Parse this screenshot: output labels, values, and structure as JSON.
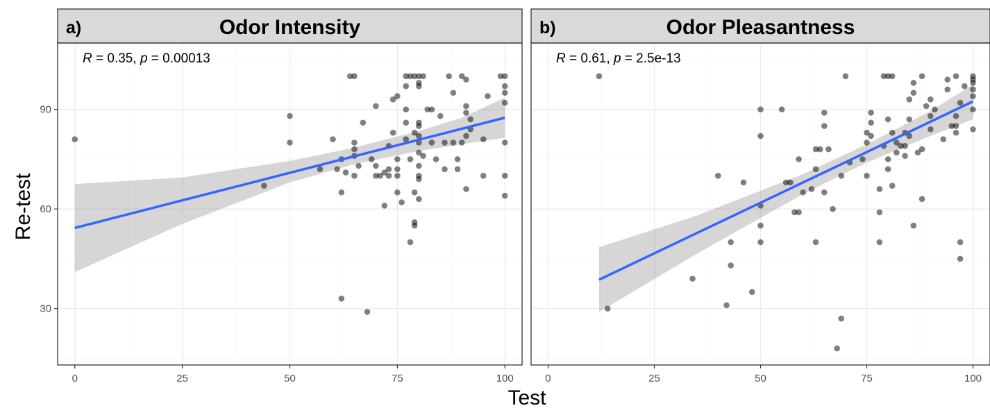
{
  "chart_data": [
    {
      "type": "scatter",
      "panel_letter": "a)",
      "title": "Odor Intensity",
      "stat": {
        "r_label": "R",
        "r_value": " = 0.35, ",
        "p_label": "p",
        "p_value": " = 0.00013"
      },
      "xlabel": "Test",
      "ylabel": "Re-test",
      "xlim": [
        -4,
        104
      ],
      "ylim": [
        13,
        110
      ],
      "x_ticks": [
        0,
        25,
        50,
        75,
        100
      ],
      "x_tick_labels": [
        "0",
        "25",
        "50",
        "75",
        "100"
      ],
      "y_ticks": [
        30,
        60,
        90
      ],
      "y_tick_labels": [
        "30",
        "60",
        "90"
      ],
      "grid": true,
      "line_color": "#3366ff",
      "point_color": "#000000",
      "fit": {
        "x0": 0,
        "y0": 54.3,
        "x1": 100,
        "y1": 87.5
      },
      "ci": [
        {
          "x": 0,
          "lower": 41,
          "upper": 67.5
        },
        {
          "x": 25,
          "lower": 55.5,
          "upper": 69.5
        },
        {
          "x": 50,
          "lower": 68,
          "upper": 74.5
        },
        {
          "x": 65,
          "lower": 73.5,
          "upper": 78.5
        },
        {
          "x": 80,
          "lower": 77.5,
          "upper": 83.5
        },
        {
          "x": 90,
          "lower": 79.5,
          "upper": 87.5
        },
        {
          "x": 100,
          "lower": 81.5,
          "upper": 93.5
        }
      ],
      "points": [
        [
          0,
          81
        ],
        [
          44,
          67
        ],
        [
          50,
          88
        ],
        [
          50,
          80
        ],
        [
          57,
          72
        ],
        [
          60,
          81
        ],
        [
          61,
          72
        ],
        [
          62,
          65
        ],
        [
          62,
          33
        ],
        [
          62,
          75
        ],
        [
          63,
          71
        ],
        [
          64,
          100
        ],
        [
          65,
          100
        ],
        [
          65,
          80
        ],
        [
          65,
          78
        ],
        [
          65,
          76
        ],
        [
          66,
          73
        ],
        [
          65,
          70
        ],
        [
          67,
          86
        ],
        [
          68,
          29
        ],
        [
          69,
          75
        ],
        [
          70,
          91
        ],
        [
          70,
          73
        ],
        [
          70,
          70
        ],
        [
          71,
          70
        ],
        [
          72,
          61
        ],
        [
          72,
          71
        ],
        [
          73,
          72
        ],
        [
          73,
          79
        ],
        [
          73,
          70
        ],
        [
          74,
          93
        ],
        [
          74,
          83
        ],
        [
          75,
          94
        ],
        [
          75,
          75
        ],
        [
          75,
          72
        ],
        [
          75,
          70
        ],
        [
          76,
          62
        ],
        [
          75,
          65
        ],
        [
          77,
          100
        ],
        [
          77,
          97
        ],
        [
          77,
          90
        ],
        [
          77,
          86
        ],
        [
          78,
          100
        ],
        [
          77,
          81
        ],
        [
          78,
          50
        ],
        [
          78,
          75
        ],
        [
          79,
          100
        ],
        [
          79,
          83
        ],
        [
          79,
          56
        ],
        [
          79,
          55
        ],
        [
          79,
          65
        ],
        [
          80,
          100
        ],
        [
          80,
          98
        ],
        [
          80,
          97
        ],
        [
          80,
          86
        ],
        [
          80,
          85
        ],
        [
          80,
          82
        ],
        [
          80,
          80
        ],
        [
          80,
          77
        ],
        [
          80,
          73
        ],
        [
          80,
          70
        ],
        [
          80,
          69
        ],
        [
          80,
          63
        ],
        [
          81,
          100
        ],
        [
          81,
          76
        ],
        [
          82,
          90
        ],
        [
          83,
          90
        ],
        [
          83,
          80
        ],
        [
          84,
          75
        ],
        [
          85,
          88
        ],
        [
          86,
          80
        ],
        [
          86,
          72
        ],
        [
          87,
          100
        ],
        [
          88,
          95
        ],
        [
          88,
          80
        ],
        [
          89,
          75
        ],
        [
          89,
          72
        ],
        [
          90,
          100
        ],
        [
          90,
          80
        ],
        [
          91,
          99
        ],
        [
          91,
          91
        ],
        [
          91,
          89
        ],
        [
          91,
          82
        ],
        [
          91,
          66
        ],
        [
          92,
          87
        ],
        [
          92,
          84
        ],
        [
          95,
          81
        ],
        [
          95,
          70
        ],
        [
          96,
          94
        ],
        [
          99,
          100
        ],
        [
          100,
          100
        ],
        [
          100,
          97
        ],
        [
          100,
          95
        ],
        [
          100,
          92
        ],
        [
          100,
          80
        ],
        [
          100,
          70
        ],
        [
          100,
          64
        ]
      ]
    },
    {
      "type": "scatter",
      "panel_letter": "b)",
      "title": "Odor Pleasantness",
      "stat": {
        "r_label": "R",
        "r_value": " = 0.61, ",
        "p_label": "p",
        "p_value": " = 2.5e-13"
      },
      "xlabel": "Test",
      "ylabel": "Re-test",
      "xlim": [
        -4,
        104
      ],
      "ylim": [
        13,
        110
      ],
      "x_ticks": [
        0,
        25,
        50,
        75,
        100
      ],
      "x_tick_labels": [
        "0",
        "25",
        "50",
        "75",
        "100"
      ],
      "y_ticks": [
        30,
        60,
        90
      ],
      "y_tick_labels": [
        "30",
        "60",
        "90"
      ],
      "grid": true,
      "line_color": "#3366ff",
      "point_color": "#000000",
      "fit": {
        "x0": 12,
        "y0": 38.7,
        "x1": 100,
        "y1": 92.4
      },
      "ci": [
        {
          "x": 12,
          "lower": 29,
          "upper": 48.5
        },
        {
          "x": 35,
          "lower": 46.5,
          "upper": 58
        },
        {
          "x": 60,
          "lower": 64.5,
          "upper": 70.5
        },
        {
          "x": 75,
          "lower": 74,
          "upper": 79.5
        },
        {
          "x": 90,
          "lower": 82,
          "upper": 89.5
        },
        {
          "x": 100,
          "lower": 87,
          "upper": 97.5
        }
      ],
      "points": [
        [
          12,
          100
        ],
        [
          14,
          30
        ],
        [
          34,
          39
        ],
        [
          40,
          70
        ],
        [
          42,
          31
        ],
        [
          43,
          50
        ],
        [
          43,
          43
        ],
        [
          46,
          68
        ],
        [
          48,
          35
        ],
        [
          50,
          90
        ],
        [
          50,
          82
        ],
        [
          50,
          61
        ],
        [
          50,
          55
        ],
        [
          50,
          50
        ],
        [
          55,
          90
        ],
        [
          56,
          68
        ],
        [
          57,
          68
        ],
        [
          58,
          59
        ],
        [
          59,
          75
        ],
        [
          59,
          59
        ],
        [
          60,
          65
        ],
        [
          62,
          66
        ],
        [
          63,
          78
        ],
        [
          63,
          72
        ],
        [
          63,
          50
        ],
        [
          64,
          78
        ],
        [
          65,
          89
        ],
        [
          65,
          85
        ],
        [
          65,
          65
        ],
        [
          66,
          78
        ],
        [
          67,
          60
        ],
        [
          68,
          18
        ],
        [
          69,
          70
        ],
        [
          69,
          27
        ],
        [
          70,
          100
        ],
        [
          71,
          74
        ],
        [
          74,
          75
        ],
        [
          75,
          83
        ],
        [
          75,
          80
        ],
        [
          75,
          70
        ],
        [
          76,
          89
        ],
        [
          76,
          86
        ],
        [
          76,
          82
        ],
        [
          78,
          66
        ],
        [
          78,
          59
        ],
        [
          78,
          50
        ],
        [
          79,
          100
        ],
        [
          79,
          79
        ],
        [
          80,
          100
        ],
        [
          80,
          87
        ],
        [
          80,
          75
        ],
        [
          80,
          72
        ],
        [
          81,
          100
        ],
        [
          81,
          83
        ],
        [
          81,
          67
        ],
        [
          82,
          80
        ],
        [
          82,
          77
        ],
        [
          83,
          79
        ],
        [
          84,
          83
        ],
        [
          84,
          76
        ],
        [
          84,
          79
        ],
        [
          85,
          87
        ],
        [
          85,
          82
        ],
        [
          85,
          93
        ],
        [
          86,
          98
        ],
        [
          86,
          95
        ],
        [
          86,
          55
        ],
        [
          87,
          77
        ],
        [
          88,
          100
        ],
        [
          88,
          78
        ],
        [
          88,
          63
        ],
        [
          89,
          91
        ],
        [
          90,
          93
        ],
        [
          90,
          88
        ],
        [
          90,
          84
        ],
        [
          91,
          90
        ],
        [
          93,
          81
        ],
        [
          94,
          99
        ],
        [
          94,
          96
        ],
        [
          95,
          85
        ],
        [
          96,
          100
        ],
        [
          96,
          88
        ],
        [
          96,
          85
        ],
        [
          96,
          83
        ],
        [
          97,
          92
        ],
        [
          97,
          50
        ],
        [
          97,
          45
        ],
        [
          98,
          97
        ],
        [
          100,
          100
        ],
        [
          100,
          99
        ],
        [
          100,
          98
        ],
        [
          100,
          96
        ],
        [
          100,
          94
        ],
        [
          100,
          90
        ],
        [
          100,
          84
        ]
      ]
    }
  ],
  "axis_titles": {
    "x": "Test",
    "y": "Re-test"
  }
}
